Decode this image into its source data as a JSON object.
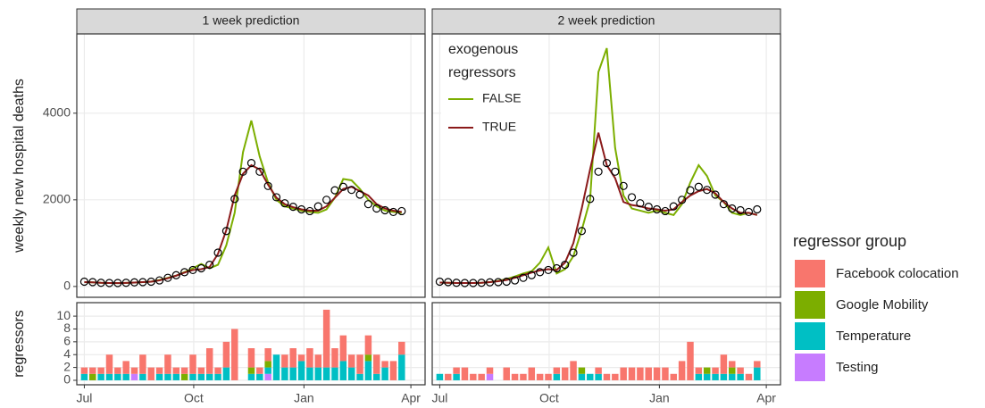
{
  "chart_data": [
    {
      "type": "line",
      "title": "1 week prediction",
      "y_label": "weekly new hospital deaths",
      "x": [
        0,
        1,
        2,
        3,
        4,
        5,
        6,
        7,
        8,
        9,
        10,
        11,
        12,
        13,
        14,
        15,
        16,
        17,
        18,
        19,
        20,
        21,
        22,
        23,
        24,
        25,
        26,
        27,
        28,
        29,
        30,
        31,
        32,
        33,
        34,
        35,
        36,
        37,
        38
      ],
      "xlim": [
        -0.9,
        40.8
      ],
      "xticks": [
        0,
        13.1,
        26.3,
        39.1
      ],
      "ylim": [
        -250,
        5830
      ],
      "yticks": [
        0,
        2000,
        4000
      ],
      "grid": true,
      "legend": false,
      "series": [
        {
          "color": "#7cae00",
          "name": "FALSE",
          "values": [
            100,
            95,
            85,
            80,
            78,
            82,
            90,
            100,
            110,
            150,
            200,
            250,
            330,
            420,
            520,
            420,
            500,
            950,
            1700,
            3100,
            3830,
            3000,
            2400,
            2000,
            1850,
            1800,
            1750,
            1720,
            1700,
            1780,
            2050,
            2480,
            2450,
            2250,
            2000,
            1850,
            1750,
            1720,
            1700
          ]
        },
        {
          "color": "#8b1a1a",
          "name": "TRUE",
          "values": [
            100,
            95,
            85,
            80,
            78,
            82,
            90,
            100,
            110,
            140,
            190,
            250,
            320,
            380,
            400,
            450,
            750,
            1300,
            2100,
            2600,
            2800,
            2700,
            2350,
            2050,
            1900,
            1830,
            1780,
            1750,
            1750,
            1850,
            2050,
            2250,
            2300,
            2200,
            2100,
            1900,
            1800,
            1750,
            1720
          ]
        },
        {
          "color": "#000000",
          "marker": "circle",
          "values": [
            110,
            100,
            85,
            80,
            80,
            85,
            95,
            100,
            110,
            140,
            200,
            260,
            330,
            380,
            420,
            500,
            780,
            1280,
            2020,
            2650,
            2850,
            2650,
            2320,
            2060,
            1920,
            1840,
            1780,
            1740,
            1850,
            2000,
            2220,
            2300,
            2230,
            2120,
            1900,
            1800,
            1760,
            1720,
            1740
          ]
        }
      ]
    },
    {
      "type": "line",
      "title": "2 week prediction",
      "x": [
        0,
        1,
        2,
        3,
        4,
        5,
        6,
        7,
        8,
        9,
        10,
        11,
        12,
        13,
        14,
        15,
        16,
        17,
        18,
        19,
        20,
        21,
        22,
        23,
        24,
        25,
        26,
        27,
        28,
        29,
        30,
        31,
        32,
        33,
        34,
        35,
        36,
        37,
        38
      ],
      "xlim": [
        -0.9,
        40.8
      ],
      "xticks": [
        0,
        13.1,
        26.3,
        39.1
      ],
      "ylim": [
        -250,
        5830
      ],
      "yticks": [
        0,
        2000,
        4000
      ],
      "ytick_labels": false,
      "grid": true,
      "legend": "top-left",
      "legend_title": [
        "exogenous",
        "regressors"
      ],
      "series": [
        {
          "color": "#7cae00",
          "name": "FALSE",
          "values": [
            90,
            85,
            80,
            80,
            80,
            85,
            100,
            130,
            170,
            230,
            300,
            350,
            550,
            900,
            300,
            400,
            700,
            1300,
            2000,
            4950,
            5500,
            3200,
            2100,
            1800,
            1750,
            1700,
            1750,
            1700,
            1650,
            1900,
            2400,
            2800,
            2550,
            2100,
            1950,
            1700,
            1650,
            1700,
            1650
          ]
        },
        {
          "color": "#8b1a1a",
          "name": "TRUE",
          "values": [
            90,
            85,
            80,
            80,
            80,
            85,
            100,
            120,
            150,
            200,
            260,
            320,
            370,
            400,
            380,
            550,
            1000,
            1800,
            2700,
            3550,
            2800,
            2500,
            1950,
            1880,
            1850,
            1800,
            1780,
            1750,
            1780,
            1950,
            2100,
            2200,
            2250,
            2150,
            1950,
            1800,
            1700,
            1700,
            1650
          ]
        },
        {
          "color": "#000000",
          "marker": "circle",
          "values": [
            110,
            100,
            85,
            80,
            80,
            85,
            95,
            100,
            110,
            140,
            200,
            260,
            330,
            380,
            420,
            500,
            780,
            1280,
            2020,
            2650,
            2850,
            2650,
            2320,
            2060,
            1920,
            1840,
            1780,
            1740,
            1850,
            2000,
            2220,
            2300,
            2230,
            2120,
            1900,
            1800,
            1760,
            1720,
            1780
          ]
        }
      ]
    },
    {
      "type": "stacked-bar",
      "y_label": "regressors",
      "x": [
        0,
        1,
        2,
        3,
        4,
        5,
        6,
        7,
        8,
        9,
        10,
        11,
        12,
        13,
        14,
        15,
        16,
        17,
        18,
        19,
        20,
        21,
        22,
        23,
        24,
        25,
        26,
        27,
        28,
        29,
        30,
        31,
        32,
        33,
        34,
        35,
        36,
        37,
        38
      ],
      "xlim": [
        -0.9,
        40.8
      ],
      "xticks": [
        {
          "value": 0,
          "label": "Jul"
        },
        {
          "value": 13.1,
          "label": "Oct"
        },
        {
          "value": 26.3,
          "label": "Jan"
        },
        {
          "value": 39.1,
          "label": "Apr"
        }
      ],
      "ylim": [
        -0.7,
        12.1
      ],
      "yticks": [
        0,
        2,
        4,
        6,
        8,
        10
      ],
      "grid": true,
      "legend": "right",
      "legend_title": "regressor group",
      "series": [
        {
          "name": "Facebook colocation",
          "color": "#f8766d",
          "values": [
            1,
            1,
            1,
            3,
            1,
            2,
            1,
            3,
            2,
            1,
            3,
            1,
            1,
            3,
            1,
            4,
            1,
            4,
            8,
            0,
            3,
            1,
            2,
            0,
            2,
            3,
            1,
            3,
            2,
            9,
            3,
            4,
            2,
            3,
            3,
            3,
            1,
            3,
            2
          ]
        },
        {
          "name": "Google Mobility",
          "color": "#7cae00",
          "values": [
            0,
            1,
            0,
            0,
            0,
            0,
            0,
            0,
            0,
            0,
            0,
            0,
            1,
            0,
            0,
            0,
            0,
            0,
            0,
            0,
            1,
            0,
            1,
            0,
            0,
            0,
            0,
            0,
            0,
            0,
            0,
            0,
            0,
            0,
            1,
            0,
            0,
            0,
            0
          ]
        },
        {
          "name": "Temperature",
          "color": "#00bfc4",
          "values": [
            1,
            0,
            1,
            1,
            1,
            1,
            0,
            1,
            0,
            1,
            1,
            1,
            0,
            1,
            1,
            1,
            1,
            2,
            0,
            0,
            1,
            1,
            1,
            4,
            2,
            2,
            3,
            2,
            2,
            2,
            2,
            3,
            2,
            1,
            3,
            1,
            2,
            0,
            4
          ]
        },
        {
          "name": "Testing",
          "color": "#c77cff",
          "values": [
            0,
            0,
            0,
            0,
            0,
            0,
            1,
            0,
            0,
            0,
            0,
            0,
            0,
            0,
            0,
            0,
            0,
            0,
            0,
            0,
            0,
            0,
            1,
            0,
            0,
            0,
            0,
            0,
            0,
            0,
            0,
            0,
            0,
            0,
            0,
            0,
            0,
            0,
            0
          ]
        }
      ]
    },
    {
      "type": "stacked-bar",
      "x": [
        0,
        1,
        2,
        3,
        4,
        5,
        6,
        7,
        8,
        9,
        10,
        11,
        12,
        13,
        14,
        15,
        16,
        17,
        18,
        19,
        20,
        21,
        22,
        23,
        24,
        25,
        26,
        27,
        28,
        29,
        30,
        31,
        32,
        33,
        34,
        35,
        36,
        37,
        38
      ],
      "xlim": [
        -0.9,
        40.8
      ],
      "xticks": [
        {
          "value": 0,
          "label": "Jul"
        },
        {
          "value": 13.1,
          "label": "Oct"
        },
        {
          "value": 26.3,
          "label": "Jan"
        },
        {
          "value": 39.1,
          "label": "Apr"
        }
      ],
      "ylim": [
        -0.7,
        12.1
      ],
      "yticks": [
        0,
        2,
        4,
        6,
        8,
        10
      ],
      "ytick_labels": false,
      "grid": true,
      "legend": false,
      "series": [
        {
          "name": "Facebook colocation",
          "color": "#f8766d",
          "values": [
            0,
            1,
            1,
            2,
            1,
            1,
            1,
            0,
            2,
            1,
            1,
            2,
            1,
            1,
            1,
            2,
            3,
            0,
            0,
            1,
            1,
            1,
            2,
            2,
            2,
            2,
            2,
            2,
            1,
            3,
            6,
            1,
            0,
            1,
            3,
            1,
            1,
            1,
            1
          ]
        },
        {
          "name": "Google Mobility",
          "color": "#7cae00",
          "values": [
            0,
            0,
            0,
            0,
            0,
            0,
            0,
            0,
            0,
            0,
            0,
            0,
            0,
            0,
            0,
            0,
            0,
            1,
            0,
            0,
            0,
            0,
            0,
            0,
            0,
            0,
            0,
            0,
            0,
            0,
            0,
            0,
            1,
            0,
            0,
            1,
            0,
            0,
            0
          ]
        },
        {
          "name": "Temperature",
          "color": "#00bfc4",
          "values": [
            1,
            0,
            1,
            0,
            0,
            0,
            0,
            0,
            0,
            0,
            0,
            0,
            0,
            0,
            1,
            0,
            0,
            1,
            1,
            1,
            0,
            0,
            0,
            0,
            0,
            0,
            0,
            0,
            0,
            0,
            0,
            1,
            1,
            1,
            1,
            1,
            1,
            0,
            2
          ]
        },
        {
          "name": "Testing",
          "color": "#c77cff",
          "values": [
            0,
            0,
            0,
            0,
            0,
            0,
            1,
            0,
            0,
            0,
            0,
            0,
            0,
            0,
            0,
            0,
            0,
            0,
            0,
            0,
            0,
            0,
            0,
            0,
            0,
            0,
            0,
            0,
            0,
            0,
            0,
            0,
            0,
            0,
            0,
            0,
            0,
            0,
            0
          ]
        }
      ]
    }
  ]
}
